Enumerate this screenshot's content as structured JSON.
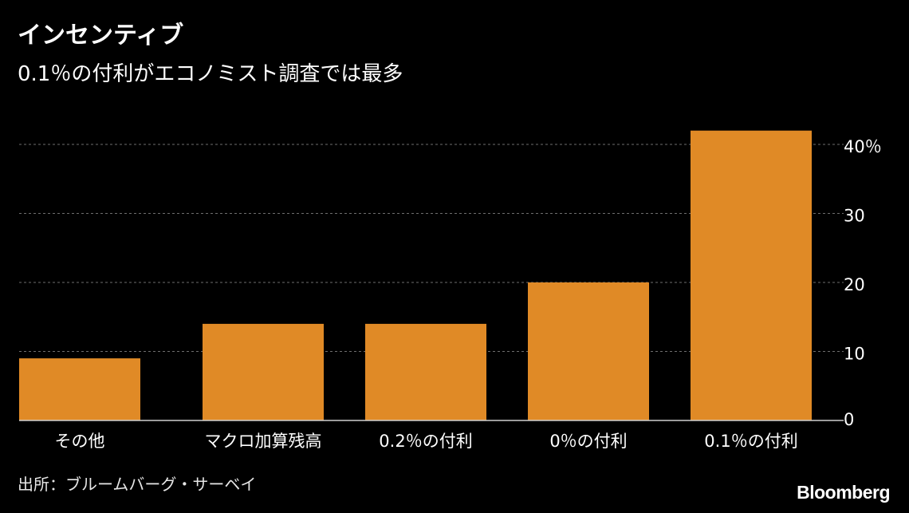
{
  "title": "インセンティブ",
  "subtitle": "0.1％の付利がエコノミスト調査では最多",
  "source": "出所：ブルームバーグ・サーベイ",
  "brand": "Bloomberg",
  "colors": {
    "background": "#000000",
    "bar": "#E08A26",
    "grid": "#6e6e6e",
    "axis": "#cfcfcf",
    "text": "#ffffff"
  },
  "chart_data": {
    "type": "bar",
    "categories": [
      "その他",
      "マクロ加算残高",
      "0.2％の付利",
      "0％の付利",
      "0.1％の付利"
    ],
    "values": [
      9,
      14,
      14,
      20,
      42
    ],
    "ylim": [
      0,
      43
    ],
    "yticks": [
      0,
      10,
      20,
      30,
      40
    ],
    "ytick_labels": [
      "0",
      "10",
      "20",
      "30",
      "40％"
    ],
    "grid": true,
    "y_axis_position": "right"
  }
}
